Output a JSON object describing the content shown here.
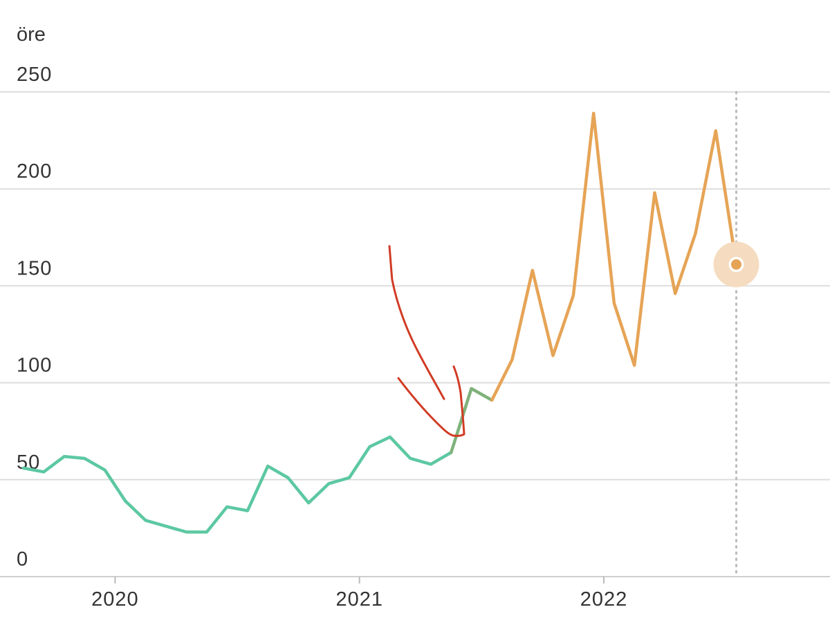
{
  "chart_data": {
    "type": "line",
    "ylabel": "öre",
    "ylim": [
      0,
      250
    ],
    "yticks": [
      0,
      50,
      100,
      150,
      200,
      250
    ],
    "xlim": [
      2019.58,
      2022.75
    ],
    "xticks": [
      {
        "value": 2020.0,
        "label": "2020"
      },
      {
        "value": 2021.0,
        "label": "2021"
      },
      {
        "value": 2022.0,
        "label": "2022"
      }
    ],
    "grid": "horizontal",
    "colors": {
      "low": "#5cc8a2",
      "high": "#e6a456",
      "transition": "#7fb27a",
      "highlight_halo": "#f5dcc0",
      "annotation": "#d13b24",
      "grid": "#dddddd",
      "cursor": "#bbbbbb"
    },
    "series": [
      {
        "x": [
          2019.625,
          2019.708,
          2019.792,
          2019.875,
          2019.958,
          2020.042,
          2020.125,
          2020.208,
          2020.292,
          2020.375,
          2020.458,
          2020.542,
          2020.625,
          2020.708,
          2020.792,
          2020.875,
          2020.958,
          2021.042,
          2021.125,
          2021.208,
          2021.292,
          2021.375,
          2021.458,
          2021.542,
          2021.625,
          2021.708,
          2021.792,
          2021.875,
          2021.958,
          2022.042,
          2022.125,
          2022.208,
          2022.292,
          2022.375,
          2022.458,
          2022.542
        ],
        "y": [
          56,
          54,
          62,
          61,
          55,
          39,
          29,
          26,
          23,
          23,
          36,
          34,
          57,
          51,
          38,
          48,
          51,
          67,
          72,
          61,
          58,
          64,
          97,
          91,
          112,
          158,
          114,
          145,
          239,
          141,
          109,
          198,
          146,
          177,
          230,
          161
        ]
      }
    ],
    "segments": [
      {
        "from_index": 0,
        "to_index": 21,
        "color_key": "low"
      },
      {
        "from_index": 21,
        "to_index": 23,
        "color_key": "transition"
      },
      {
        "from_index": 23,
        "to_index": 35,
        "color_key": "high"
      }
    ],
    "highlight": {
      "x": 2022.542,
      "y": 161
    },
    "cursor_x": 2022.542,
    "annotation": "hand-drawn-arrow"
  }
}
